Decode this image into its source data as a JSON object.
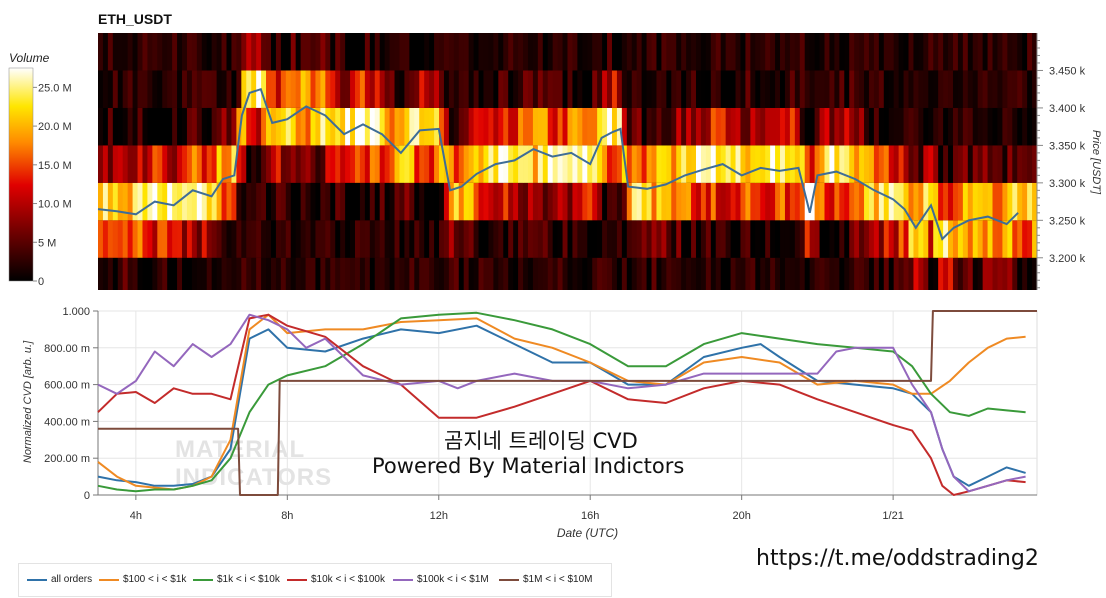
{
  "chart_data": [
    {
      "type": "heatmap",
      "title": "ETH_USDT",
      "ylabel": "Price [USDT]",
      "colorbar_label": "Volume",
      "colorbar_ticks": [
        "25.0 M",
        "20.0 M",
        "15.0 M",
        "10.0 M",
        "5 M",
        "0"
      ],
      "colorbar_values": [
        25,
        20,
        15,
        10,
        5,
        0
      ],
      "y_ticks": [
        "3.450 k",
        "3.400 k",
        "3.350 k",
        "3.300 k",
        "3.250 k",
        "3.200 k"
      ],
      "y_tick_values": [
        3450,
        3400,
        3350,
        3300,
        3250,
        3200
      ],
      "ylim": [
        3157,
        3500
      ],
      "price_bins": [
        3175,
        3225,
        3275,
        3325,
        3375,
        3425,
        3475
      ],
      "price_line": {
        "hours": [
          3,
          3.5,
          4,
          4.5,
          5,
          5.5,
          6,
          6.3,
          6.6,
          6.8,
          7.0,
          7.3,
          7.6,
          8,
          8.5,
          9,
          9.5,
          10,
          10.5,
          11,
          11.5,
          12,
          12.3,
          12.6,
          13,
          13.5,
          14,
          14.5,
          15,
          15.5,
          16,
          16.3,
          16.6,
          16.8,
          17,
          17.5,
          18,
          18.5,
          19,
          19.5,
          20,
          20.5,
          21,
          21.5,
          21.8,
          22,
          22.5,
          23,
          23.5,
          24,
          24.3,
          24.6,
          25,
          25.3,
          25.6,
          26,
          26.5,
          27,
          27.3
        ],
        "price": [
          3265,
          3262,
          3258,
          3275,
          3270,
          3290,
          3282,
          3305,
          3310,
          3390,
          3420,
          3425,
          3380,
          3385,
          3402,
          3390,
          3365,
          3378,
          3365,
          3340,
          3370,
          3372,
          3290,
          3295,
          3312,
          3325,
          3330,
          3345,
          3335,
          3340,
          3325,
          3360,
          3368,
          3372,
          3295,
          3292,
          3298,
          3310,
          3318,
          3325,
          3310,
          3320,
          3316,
          3320,
          3260,
          3310,
          3315,
          3305,
          3290,
          3278,
          3265,
          3240,
          3270,
          3225,
          3240,
          3250,
          3255,
          3245,
          3260
        ]
      }
    },
    {
      "type": "line",
      "xlabel": "Date (UTC)",
      "ylabel": "Normalized CVD [arb. u.]",
      "x_ticks": [
        "4h",
        "8h",
        "12h",
        "16h",
        "20h",
        "1/21"
      ],
      "x_tick_values": [
        4,
        8,
        12,
        16,
        20,
        24
      ],
      "xlim": [
        3,
        27.8
      ],
      "y_ticks": [
        "1.000",
        "800.00 m",
        "600.00 m",
        "400.00 m",
        "200.00 m",
        "0"
      ],
      "y_tick_values": [
        1.0,
        0.8,
        0.6,
        0.4,
        0.2,
        0.0
      ],
      "ylim": [
        0,
        1
      ],
      "series": [
        {
          "name": "all orders",
          "color": "#2f72a9",
          "x": [
            3,
            3.5,
            4,
            4.5,
            5,
            5.5,
            6,
            6.5,
            7,
            7.5,
            8,
            9,
            10,
            11,
            12,
            13,
            14,
            15,
            16,
            17,
            18,
            19,
            20,
            20.5,
            21,
            22,
            23,
            24,
            24.5,
            25,
            25.3,
            25.6,
            26,
            26.5,
            27,
            27.5
          ],
          "y": [
            0.1,
            0.08,
            0.07,
            0.05,
            0.05,
            0.06,
            0.1,
            0.25,
            0.85,
            0.9,
            0.8,
            0.78,
            0.85,
            0.9,
            0.88,
            0.92,
            0.82,
            0.72,
            0.72,
            0.6,
            0.6,
            0.75,
            0.8,
            0.82,
            0.75,
            0.62,
            0.6,
            0.58,
            0.55,
            0.45,
            0.25,
            0.1,
            0.05,
            0.1,
            0.15,
            0.12
          ]
        },
        {
          "name": "$100 < i < $1k",
          "color": "#ef8a23",
          "x": [
            3,
            3.5,
            4,
            4.5,
            5,
            5.5,
            6,
            6.5,
            7,
            7.5,
            8,
            9,
            10,
            11,
            12,
            13,
            14,
            15,
            16,
            17,
            18,
            19,
            20,
            21,
            22,
            23,
            24,
            24.5,
            25,
            25.5,
            26,
            26.5,
            27,
            27.5
          ],
          "y": [
            0.18,
            0.1,
            0.05,
            0.04,
            0.03,
            0.05,
            0.1,
            0.3,
            0.9,
            0.98,
            0.88,
            0.9,
            0.9,
            0.94,
            0.95,
            0.96,
            0.85,
            0.8,
            0.72,
            0.62,
            0.6,
            0.72,
            0.75,
            0.72,
            0.6,
            0.62,
            0.6,
            0.55,
            0.55,
            0.62,
            0.72,
            0.8,
            0.85,
            0.86
          ]
        },
        {
          "name": "$1k < i < $10k",
          "color": "#3a9a3a",
          "x": [
            3,
            3.5,
            4,
            4.5,
            5,
            5.5,
            6,
            6.5,
            7,
            7.5,
            8,
            9,
            10,
            11,
            12,
            13,
            14,
            15,
            16,
            17,
            18,
            19,
            20,
            21,
            22,
            23,
            24,
            24.5,
            25,
            25.5,
            26,
            26.5,
            27,
            27.5
          ],
          "y": [
            0.05,
            0.03,
            0.02,
            0.03,
            0.03,
            0.05,
            0.08,
            0.2,
            0.45,
            0.6,
            0.65,
            0.7,
            0.82,
            0.96,
            0.98,
            0.99,
            0.95,
            0.9,
            0.82,
            0.7,
            0.7,
            0.82,
            0.88,
            0.85,
            0.82,
            0.8,
            0.78,
            0.7,
            0.55,
            0.45,
            0.43,
            0.47,
            0.46,
            0.45
          ]
        },
        {
          "name": "$10k < i < $100k",
          "color": "#c32b2b",
          "x": [
            3,
            3.5,
            4,
            4.5,
            5,
            5.5,
            6,
            6.5,
            7,
            7.5,
            8,
            9,
            10,
            11,
            12,
            13,
            14,
            15,
            16,
            17,
            18,
            19,
            20,
            21,
            22,
            23,
            24,
            24.5,
            25,
            25.3,
            25.6,
            26,
            26.5,
            27,
            27.5
          ],
          "y": [
            0.45,
            0.55,
            0.56,
            0.5,
            0.58,
            0.55,
            0.55,
            0.52,
            0.96,
            0.98,
            0.92,
            0.86,
            0.7,
            0.6,
            0.42,
            0.42,
            0.48,
            0.55,
            0.62,
            0.52,
            0.5,
            0.58,
            0.62,
            0.6,
            0.52,
            0.45,
            0.38,
            0.35,
            0.2,
            0.05,
            0.0,
            0.02,
            0.05,
            0.08,
            0.07
          ]
        },
        {
          "name": "$100k < i < $1M",
          "color": "#9467bd",
          "x": [
            3,
            3.5,
            4,
            4.5,
            5,
            5.5,
            6,
            6.5,
            7,
            7.5,
            8,
            8.5,
            9,
            10,
            11,
            12,
            12.5,
            13,
            14,
            15,
            16,
            17,
            18,
            19,
            20,
            21,
            22,
            22.5,
            23,
            24,
            24.5,
            25,
            25.3,
            25.6,
            26,
            26.5,
            27,
            27.5
          ],
          "y": [
            0.6,
            0.55,
            0.62,
            0.78,
            0.7,
            0.82,
            0.75,
            0.82,
            0.98,
            0.95,
            0.9,
            0.8,
            0.85,
            0.65,
            0.6,
            0.62,
            0.58,
            0.62,
            0.66,
            0.62,
            0.62,
            0.58,
            0.6,
            0.66,
            0.66,
            0.66,
            0.66,
            0.78,
            0.8,
            0.8,
            0.6,
            0.45,
            0.25,
            0.1,
            0.02,
            0.05,
            0.08,
            0.1
          ]
        },
        {
          "name": "$1M < i < $10M",
          "color": "#7d4b3c",
          "x": [
            3,
            6.7,
            6.75,
            7.75,
            7.8,
            24.7,
            24.75,
            25.0,
            25.05,
            27.8
          ],
          "y": [
            0.36,
            0.36,
            0.0,
            0.0,
            0.62,
            0.62,
            0.62,
            0.62,
            1.0,
            1.0
          ]
        }
      ]
    }
  ],
  "overlay": {
    "line1": "곰지네 트레이딩 CVD",
    "line2": "Powered By Material Indictors",
    "url": "https://t.me/oddstrading2",
    "watermark_line1": "MATERIAL",
    "watermark_line2": "INDICATORS"
  },
  "colors": {
    "price_line": "#3e6d97",
    "grid": "#e6e6e6"
  }
}
